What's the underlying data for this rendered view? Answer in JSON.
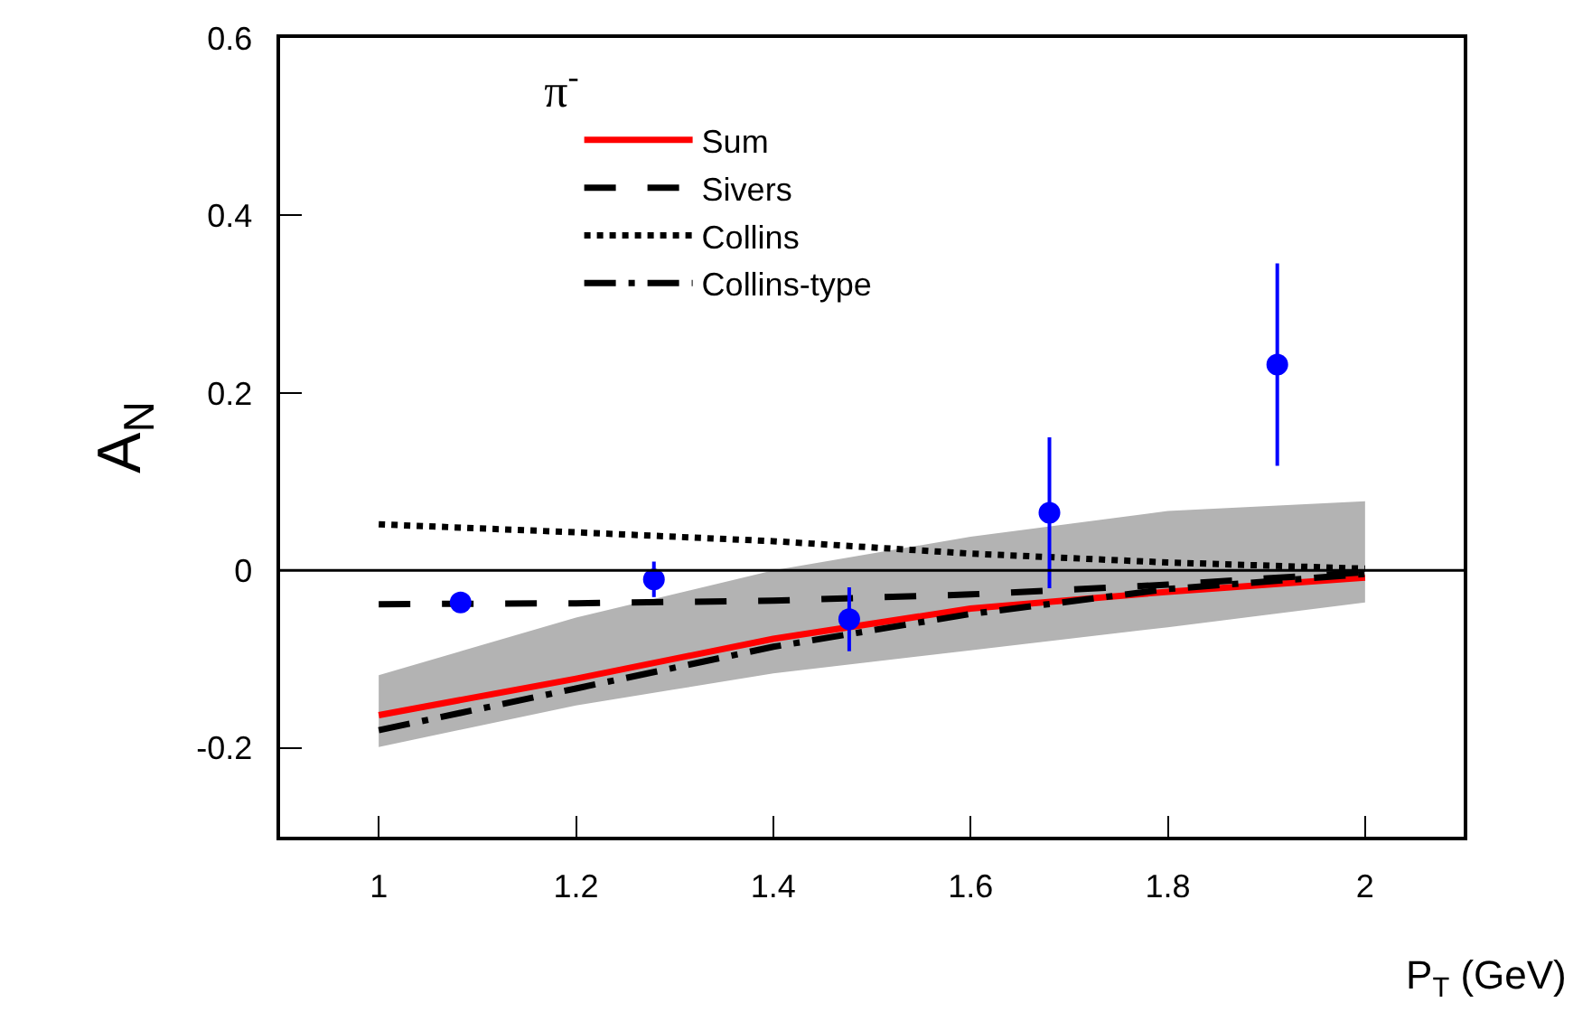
{
  "chart_data": {
    "type": "line",
    "xlabel": "P$_{T}$ (GeV)",
    "ylabel": "A$_{N}$",
    "legend_title": "π$^{-}$",
    "legend": "top left",
    "xlim": [
      0.9,
      2.1
    ],
    "xticks": [
      1,
      1.2,
      1.4,
      1.6,
      1.8,
      2
    ],
    "ylim": [
      -0.3,
      0.6
    ],
    "yticks": [
      -0.2,
      0,
      0.2,
      0.4,
      0.6
    ],
    "grid": false,
    "ref_lines": [
      {
        "axis": "y",
        "value": 0,
        "color": "#000000"
      }
    ],
    "series": [
      {
        "name": "Sum",
        "color": "#ff0000",
        "line_style": "solid",
        "marker": "none",
        "x": [
          1,
          1.2,
          1.4,
          1.6,
          1.8,
          2
        ],
        "values": [
          -0.163,
          -0.122,
          -0.077,
          -0.043,
          -0.024,
          -0.008
        ],
        "lower": [
          -0.199,
          -0.152,
          -0.116,
          -0.09,
          -0.064,
          -0.036
        ],
        "upper": [
          -0.118,
          -0.053,
          0.0,
          0.038,
          0.067,
          0.078
        ]
      },
      {
        "name": "Sivers",
        "color": "#000000",
        "line_style": "dashed",
        "marker": "none",
        "x": [
          1,
          1.2,
          1.4,
          1.6,
          1.8,
          2
        ],
        "values": [
          -0.038,
          -0.037,
          -0.034,
          -0.027,
          -0.016,
          -0.002
        ]
      },
      {
        "name": "Collins",
        "color": "#000000",
        "line_style": "dotted",
        "marker": "none",
        "x": [
          1,
          1.2,
          1.4,
          1.6,
          1.8,
          2
        ],
        "values": [
          0.052,
          0.043,
          0.033,
          0.019,
          0.009,
          0.002
        ]
      },
      {
        "name": "Collins-type",
        "color": "#000000",
        "line_style": "dashdot",
        "marker": "none",
        "x": [
          1,
          1.2,
          1.4,
          1.6,
          1.8,
          2
        ],
        "values": [
          -0.18,
          -0.133,
          -0.086,
          -0.049,
          -0.021,
          -0.004
        ]
      },
      {
        "type": "scatter",
        "color": "#0000ff",
        "marker": "circle",
        "x": [
          1.083,
          1.279,
          1.477,
          1.68,
          1.911
        ],
        "values": [
          -0.036,
          -0.01,
          -0.055,
          0.065,
          0.232
        ],
        "errors": [
          null,
          0.02,
          0.036,
          0.085,
          0.114
        ]
      }
    ]
  }
}
